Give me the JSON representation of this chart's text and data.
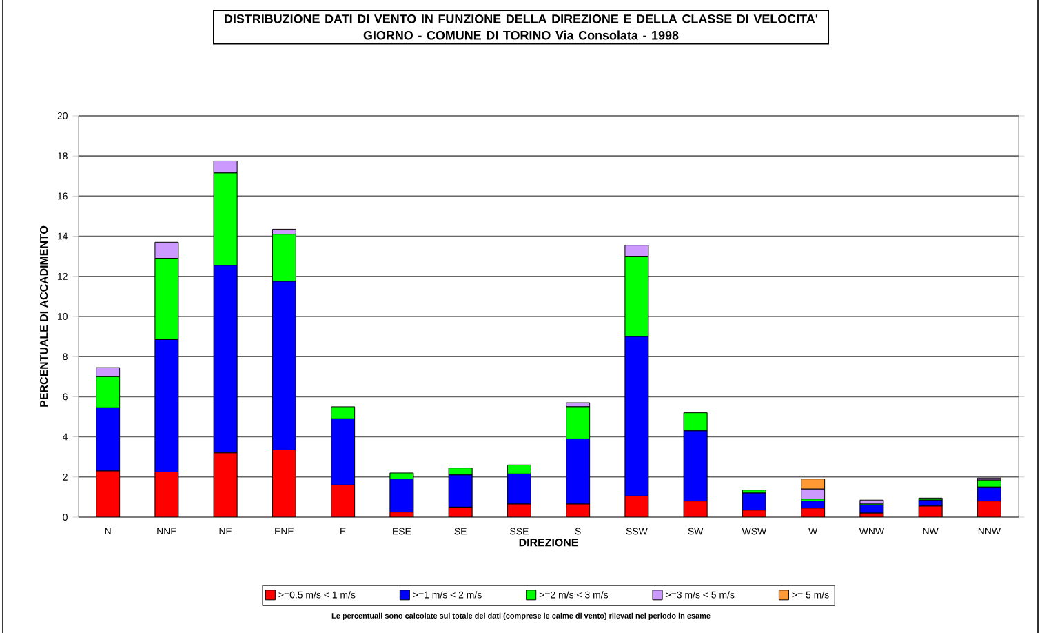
{
  "chart_data": {
    "type": "bar",
    "stacked": true,
    "title": "DISTRIBUZIONE DATI DI VENTO IN FUNZIONE DELLA DIREZIONE E DELLA CLASSE DI VELOCITA'",
    "subtitle": "GIORNO - COMUNE DI TORINO Via Consolata - 1998",
    "xlabel": "DIREZIONE",
    "ylabel": "PERCENTUALE DI ACCADIMENTO",
    "categories": [
      "N",
      "NNE",
      "NE",
      "ENE",
      "E",
      "ESE",
      "SE",
      "SSE",
      "S",
      "SSW",
      "SW",
      "WSW",
      "W",
      "WNW",
      "NW",
      "NNW"
    ],
    "series": [
      {
        "name": ">=0.5 m/s < 1 m/s",
        "color": "#ff0000",
        "values": [
          2.3,
          2.25,
          3.2,
          3.35,
          1.6,
          0.25,
          0.5,
          0.65,
          0.65,
          1.05,
          0.8,
          0.35,
          0.45,
          0.2,
          0.55,
          0.8
        ]
      },
      {
        "name": ">=1 m/s < 2 m/s",
        "color": "#0000ff",
        "values": [
          3.15,
          6.6,
          9.35,
          8.4,
          3.3,
          1.65,
          1.6,
          1.5,
          3.25,
          7.95,
          3.5,
          0.85,
          0.35,
          0.4,
          0.3,
          0.7
        ]
      },
      {
        "name": ">=2 m/s < 3 m/s",
        "color": "#00ff00",
        "values": [
          1.55,
          4.05,
          4.6,
          2.35,
          0.6,
          0.3,
          0.35,
          0.45,
          1.6,
          4.0,
          0.9,
          0.15,
          0.1,
          0.05,
          0.1,
          0.35
        ]
      },
      {
        "name": ">=3 m/s < 5 m/s",
        "color": "#cc99ff",
        "values": [
          0.45,
          0.8,
          0.6,
          0.25,
          0,
          0,
          0,
          0,
          0.2,
          0.55,
          0,
          0,
          0.5,
          0.2,
          null,
          0.1
        ]
      },
      {
        "name": ">= 5 m/s",
        "color": "#ff9933",
        "values": [
          0,
          0,
          0,
          0,
          0,
          0,
          0,
          0,
          0,
          0,
          0,
          0,
          0.5,
          0,
          0,
          0
        ]
      }
    ],
    "ylim": [
      0,
      20
    ],
    "yticks": [
      0,
      2,
      4,
      6,
      8,
      10,
      12,
      14,
      16,
      18,
      20
    ],
    "grid": "y",
    "legend": "bottom",
    "annotations": [
      "Le percentuali sono calcolate sul totale dei dati (comprese le calme di vento) rilevati nel periodo in esame"
    ]
  }
}
